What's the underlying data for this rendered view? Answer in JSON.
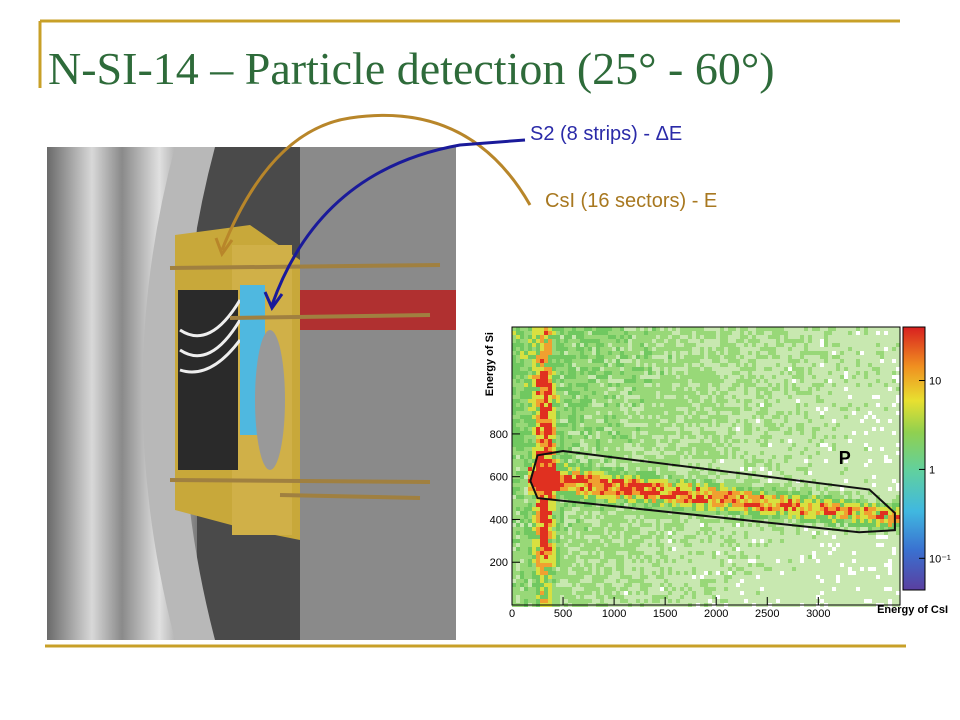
{
  "title": "N-SI-14 – Particle detection (25° - 60°)",
  "labels": {
    "s2": "S2 (8 strips) - ΔE",
    "csi": "CsI (16 sectors) - E"
  },
  "plot": {
    "x_label": "Energy of CsI",
    "y_label": "Energy of Si",
    "xlim": [
      0,
      3800
    ],
    "ylim": [
      0,
      1300
    ],
    "xticks": [
      0,
      500,
      1000,
      1500,
      2000,
      2500,
      3000
    ],
    "yticks": [
      200,
      400,
      600,
      800
    ],
    "colorbar": {
      "scale": "log",
      "lim": [
        0.044,
        40
      ],
      "ticks": [
        {
          "value": 0.1,
          "label": "10⁻¹"
        },
        1,
        10
      ]
    },
    "region_label": "P"
  }
}
